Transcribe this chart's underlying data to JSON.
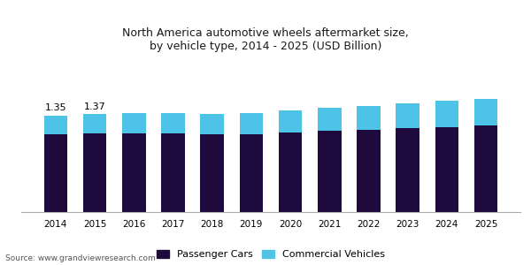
{
  "title": "North America automotive wheels aftermarket size,\nby vehicle type, 2014 - 2025 (USD Billion)",
  "years": [
    2014,
    2015,
    2016,
    2017,
    2018,
    2019,
    2020,
    2021,
    2022,
    2023,
    2024,
    2025
  ],
  "passenger_cars": [
    1.08,
    1.1,
    1.1,
    1.1,
    1.09,
    1.09,
    1.11,
    1.13,
    1.15,
    1.17,
    1.19,
    1.21
  ],
  "commercial_vehicles": [
    0.27,
    0.27,
    0.28,
    0.28,
    0.28,
    0.29,
    0.31,
    0.32,
    0.33,
    0.35,
    0.36,
    0.37
  ],
  "annotations": {
    "2014": "1.35",
    "2015": "1.37"
  },
  "bar_color_passenger": "#1e0a3c",
  "bar_color_commercial": "#4dc3e8",
  "legend_labels": [
    "Passenger Cars",
    "Commercial Vehicles"
  ],
  "source_text": "Source: www.grandviewresearch.com",
  "title_color": "#1a1a1a",
  "background_color": "#ffffff",
  "header_bg_color": "#ededf0",
  "ylim": [
    0,
    1.85
  ],
  "bar_width": 0.6
}
